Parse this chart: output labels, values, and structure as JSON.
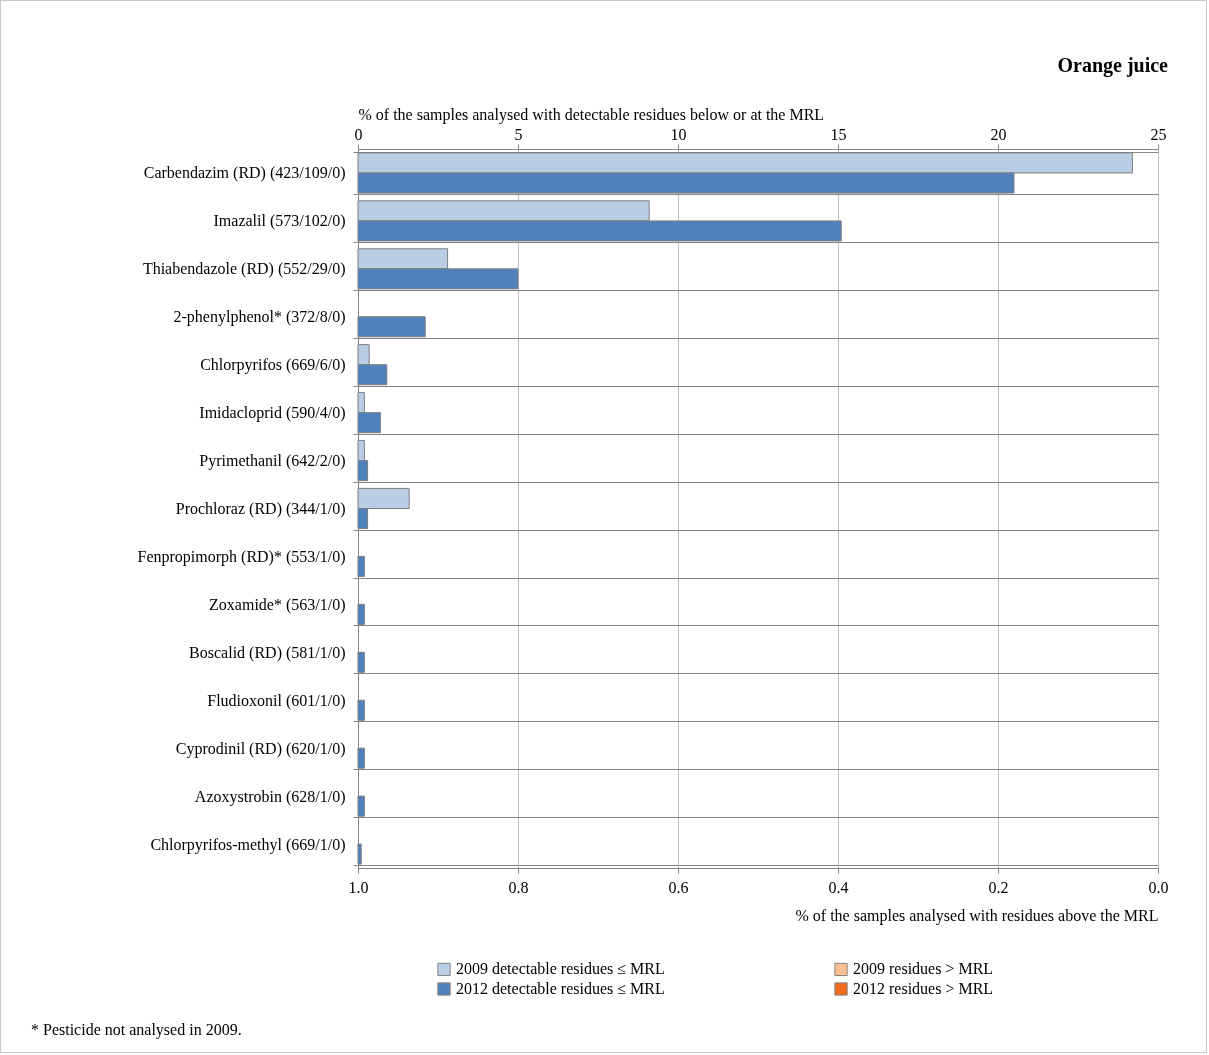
{
  "chart_data": {
    "type": "bar",
    "orientation": "horizontal",
    "title": "Orange juice",
    "x2label": "% of the samples analysed with detectable residues below or at the MRL",
    "xlabel": "% of the samples analysed with residues above the MRL",
    "categories": [
      "Carbendazim (RD) (423/109/0)",
      "Imazalil (573/102/0)",
      "Thiabendazole (RD) (552/29/0)",
      "2-phenylphenol* (372/8/0)",
      "Chlorpyrifos (669/6/0)",
      "Imidacloprid (590/4/0)",
      "Pyrimethanil (642/2/0)",
      "Prochloraz (RD) (344/1/0)",
      "Fenpropimorph (RD)* (553/1/0)",
      "Zoxamide* (563/1/0)",
      "Boscalid (RD) (581/1/0)",
      "Fludioxonil (601/1/0)",
      "Cyprodinil (RD) (620/1/0)",
      "Azoxystrobin (628/1/0)",
      "Chlorpyrifos-methyl (669/1/0)"
    ],
    "xlim": [
      1.0,
      0.0
    ],
    "xticks": [
      {
        "value": 1,
        "label": "1.0"
      },
      {
        "value": 0.8,
        "label": "0.8"
      },
      {
        "value": 0.6,
        "label": "0.6"
      },
      {
        "value": 0.4,
        "label": "0.4"
      },
      {
        "value": 0.2,
        "label": "0.2"
      },
      {
        "value": 0,
        "label": "0.0"
      }
    ],
    "x2lim": [
      0,
      25
    ],
    "x2ticks": [
      0,
      5,
      10,
      15,
      20,
      25
    ],
    "series": [
      {
        "name": "2009 detectable  residues ≤ MRL",
        "color": "#b9cde5",
        "axis": "x2",
        "values": [
          24.2,
          9.1,
          2.8,
          null,
          0.35,
          0.2,
          0.2,
          1.6,
          null,
          null,
          null,
          null,
          null,
          null,
          null
        ]
      },
      {
        "name": "2012 detectable  residues ≤ MRL",
        "color": "#4f81bd",
        "axis": "x2",
        "values": [
          20.5,
          15.1,
          5.0,
          2.1,
          0.9,
          0.7,
          0.3,
          0.3,
          0.2,
          0.2,
          0.2,
          0.2,
          0.2,
          0.2,
          0.1
        ]
      },
      {
        "name": "2009 residues > MRL",
        "color": "#fac090",
        "values": [
          null,
          null,
          null,
          null,
          null,
          null,
          null,
          null,
          null,
          null,
          null,
          null,
          null,
          null,
          null
        ]
      },
      {
        "name": "2012 residues > MRL",
        "color": "#f26b1d",
        "values": [
          null,
          null,
          null,
          null,
          null,
          null,
          null,
          null,
          null,
          null,
          null,
          null,
          null,
          null,
          null
        ]
      }
    ],
    "grid": true,
    "legend": "bottom",
    "annotations": [
      "* Pesticide not analysed in 2009."
    ]
  }
}
